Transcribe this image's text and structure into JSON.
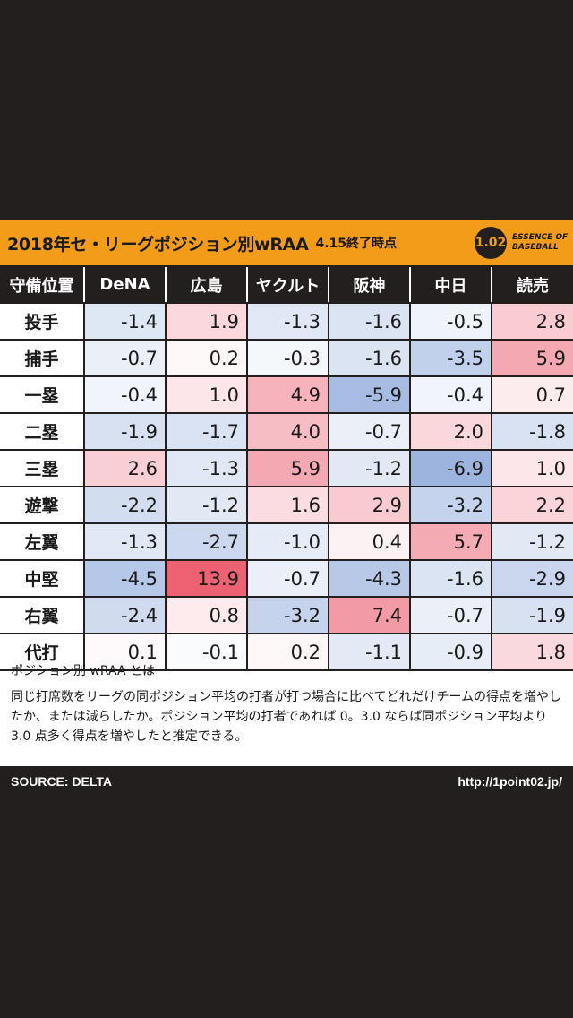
{
  "header": {
    "title": "2018年セ・リーグポジション別wRAA",
    "date": "4.15終了時点",
    "logo_mark": "1.02",
    "logo_text_1": "ESSENCE OF",
    "logo_text_2": "BASEBALL"
  },
  "chart_data": {
    "type": "table",
    "title": "2018年セ・リーグポジション別wRAA",
    "row_header_label": "守備位置",
    "columns": [
      "DeNA",
      "広島",
      "ヤクルト",
      "阪神",
      "中日",
      "読売"
    ],
    "rows": [
      {
        "position": "投手",
        "values": [
          "-1.4",
          "1.9",
          "-1.3",
          "-1.6",
          "-0.5",
          "2.8"
        ]
      },
      {
        "position": "捕手",
        "values": [
          "-0.7",
          "0.2",
          "-0.3",
          "-1.6",
          "-3.5",
          "5.9"
        ]
      },
      {
        "position": "一塁",
        "values": [
          "-0.4",
          "1.0",
          "4.9",
          "-5.9",
          "-0.4",
          "0.7"
        ]
      },
      {
        "position": "二塁",
        "values": [
          "-1.9",
          "-1.7",
          "4.0",
          "-0.7",
          "2.0",
          "-1.8"
        ]
      },
      {
        "position": "三塁",
        "values": [
          "2.6",
          "-1.3",
          "5.9",
          "-1.2",
          "-6.9",
          "1.0"
        ]
      },
      {
        "position": "遊撃",
        "values": [
          "-2.2",
          "-1.2",
          "1.6",
          "2.9",
          "-3.2",
          "2.2"
        ]
      },
      {
        "position": "左翼",
        "values": [
          "-1.3",
          "-2.7",
          "-1.0",
          "0.4",
          "5.7",
          "-1.2"
        ]
      },
      {
        "position": "中堅",
        "values": [
          "-4.5",
          "13.9",
          "-0.7",
          "-4.3",
          "-1.6",
          "-2.9"
        ]
      },
      {
        "position": "右翼",
        "values": [
          "-2.4",
          "0.8",
          "-3.2",
          "7.4",
          "-0.7",
          "-1.9"
        ]
      },
      {
        "position": "代打",
        "values": [
          "0.1",
          "-0.1",
          "0.2",
          "-1.1",
          "-0.9",
          "1.8"
        ]
      }
    ],
    "color_scale": {
      "positive": "#e8455a",
      "negative": "#3f6fc0",
      "neutral": "#ffffff"
    }
  },
  "note": {
    "title": "ポジション別 wRAA とは",
    "body": "同じ打席数をリーグの同ポジション平均の打者が打つ場合に比べてどれだけチームの得点を増やしたか、または減らしたか。ポジション平均の打者であれば 0。3.0 ならば同ポジション平均より 3.0 点多く得点を増やしたと推定できる。"
  },
  "footer": {
    "source": "SOURCE: DELTA",
    "url": "http://1point02.jp/"
  }
}
